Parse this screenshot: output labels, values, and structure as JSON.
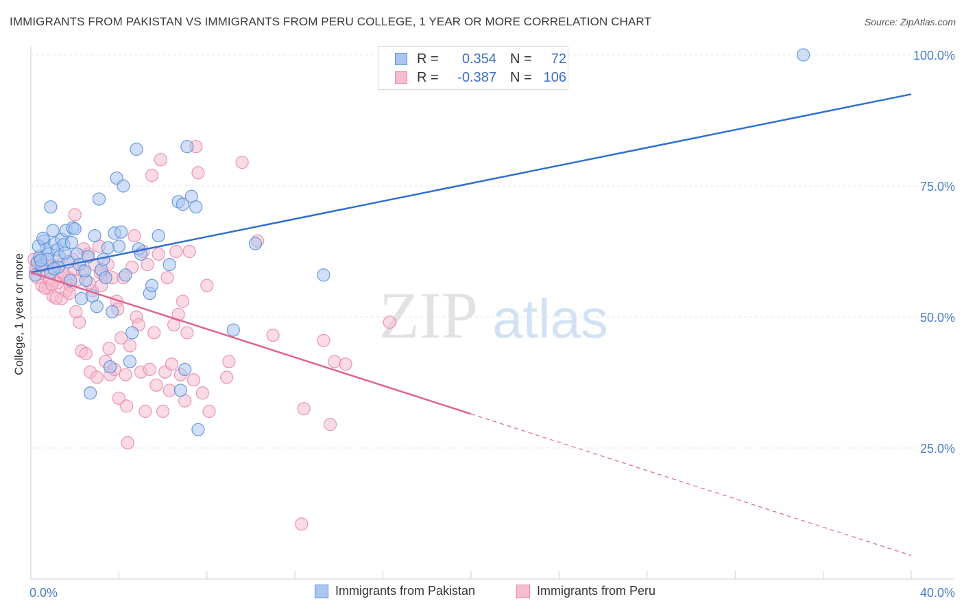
{
  "header": {
    "title": "IMMIGRANTS FROM PAKISTAN VS IMMIGRANTS FROM PERU COLLEGE, 1 YEAR OR MORE CORRELATION CHART",
    "source": "Source: ZipAtlas.com"
  },
  "watermark": {
    "zip": "ZIP",
    "atlas": "atlas"
  },
  "legend": {
    "r_label": "R =",
    "n_label": "N =",
    "pakistan": {
      "r": "0.354",
      "n": "72"
    },
    "peru": {
      "r": "-0.387",
      "n": "106"
    }
  },
  "bottom_legend": {
    "pakistan": "Immigrants from Pakistan",
    "peru": "Immigrants from Peru"
  },
  "colors": {
    "pakistan_fill": "#a9c5f0",
    "pakistan_stroke": "#5a8fd8",
    "pakistan_line": "#2f6fd0",
    "peru_fill": "#f6bcd0",
    "peru_stroke": "#e889ab",
    "peru_line": "#e0628f",
    "axis_text": "#4a7ecb"
  },
  "chart_data": {
    "type": "scatter",
    "title": "IMMIGRANTS FROM PAKISTAN VS IMMIGRANTS FROM PERU COLLEGE, 1 YEAR OR MORE CORRELATION CHART",
    "xlabel": "",
    "ylabel": "College, 1 year or more",
    "xlim": [
      0,
      40
    ],
    "ylim": [
      0,
      103
    ],
    "x_tick_labels": [
      "0.0%",
      "40.0%"
    ],
    "y_ticks": [
      25,
      50,
      75,
      100
    ],
    "y_tick_labels": [
      "25.0%",
      "50.0%",
      "75.0%",
      "100.0%"
    ],
    "grid": true,
    "series": [
      {
        "name": "Immigrants from Pakistan",
        "points": [
          [
            0.3,
            60.5
          ],
          [
            0.4,
            61.5
          ],
          [
            0.5,
            59.8
          ],
          [
            0.6,
            64.5
          ],
          [
            0.7,
            63
          ],
          [
            0.8,
            62
          ],
          [
            0.9,
            71
          ],
          [
            0.9,
            58.5
          ],
          [
            1.0,
            66.5
          ],
          [
            1.1,
            64
          ],
          [
            1.2,
            62.8
          ],
          [
            1.3,
            61.5
          ],
          [
            1.4,
            64.8
          ],
          [
            1.5,
            63.8
          ],
          [
            1.6,
            66.5
          ],
          [
            1.7,
            60.5
          ],
          [
            1.8,
            57
          ],
          [
            1.9,
            67
          ],
          [
            2.0,
            66.8
          ],
          [
            2.1,
            62
          ],
          [
            2.2,
            60
          ],
          [
            2.3,
            53.5
          ],
          [
            2.5,
            57
          ],
          [
            2.6,
            61.5
          ],
          [
            2.7,
            35.5
          ],
          [
            2.8,
            54
          ],
          [
            3.0,
            52
          ],
          [
            3.1,
            72.5
          ],
          [
            3.2,
            59
          ],
          [
            3.3,
            61
          ],
          [
            3.4,
            57.5
          ],
          [
            3.6,
            40.5
          ],
          [
            3.7,
            51
          ],
          [
            3.8,
            66
          ],
          [
            3.9,
            76.5
          ],
          [
            4.0,
            63.5
          ],
          [
            4.2,
            75
          ],
          [
            4.3,
            58
          ],
          [
            4.5,
            41.5
          ],
          [
            4.6,
            47
          ],
          [
            4.8,
            82
          ],
          [
            4.9,
            63
          ],
          [
            5.0,
            62
          ],
          [
            5.4,
            54.5
          ],
          [
            5.5,
            56
          ],
          [
            5.8,
            65.5
          ],
          [
            6.3,
            60
          ],
          [
            6.7,
            72
          ],
          [
            6.8,
            36
          ],
          [
            6.9,
            71.5
          ],
          [
            7.0,
            40
          ],
          [
            7.1,
            82.5
          ],
          [
            7.3,
            73
          ],
          [
            7.5,
            71
          ],
          [
            7.6,
            28.5
          ],
          [
            9.2,
            47.5
          ],
          [
            10.2,
            64
          ],
          [
            13.3,
            58
          ],
          [
            35.1,
            100
          ],
          [
            0.2,
            58
          ],
          [
            0.35,
            63.5
          ],
          [
            0.55,
            65
          ],
          [
            0.75,
            61
          ],
          [
            1.25,
            59.5
          ],
          [
            1.55,
            62.2
          ],
          [
            1.85,
            64.2
          ],
          [
            2.45,
            58.8
          ],
          [
            2.9,
            65.5
          ],
          [
            3.5,
            63.2
          ],
          [
            4.1,
            66.2
          ],
          [
            0.45,
            60.8
          ],
          [
            1.05,
            59.2
          ]
        ]
      },
      {
        "name": "Immigrants from Peru",
        "points": [
          [
            0.2,
            59
          ],
          [
            0.3,
            57.5
          ],
          [
            0.4,
            61
          ],
          [
            0.5,
            56
          ],
          [
            0.6,
            58.5
          ],
          [
            0.7,
            60.5
          ],
          [
            0.8,
            55.5
          ],
          [
            0.9,
            59.5
          ],
          [
            1.0,
            54
          ],
          [
            1.1,
            57
          ],
          [
            1.2,
            56.5
          ],
          [
            1.3,
            60
          ],
          [
            1.4,
            53.5
          ],
          [
            1.5,
            58
          ],
          [
            1.6,
            55
          ],
          [
            1.7,
            57.5
          ],
          [
            1.8,
            56
          ],
          [
            1.9,
            61
          ],
          [
            2.0,
            59
          ],
          [
            2.1,
            57
          ],
          [
            2.2,
            49
          ],
          [
            2.3,
            43.5
          ],
          [
            2.4,
            63
          ],
          [
            2.5,
            43
          ],
          [
            2.6,
            62
          ],
          [
            2.7,
            39.5
          ],
          [
            2.8,
            55
          ],
          [
            2.9,
            60
          ],
          [
            3.0,
            38.5
          ],
          [
            3.1,
            63.5
          ],
          [
            3.2,
            56
          ],
          [
            3.3,
            58
          ],
          [
            3.4,
            41.5
          ],
          [
            3.5,
            60
          ],
          [
            3.6,
            39
          ],
          [
            3.7,
            57.5
          ],
          [
            3.8,
            40
          ],
          [
            3.9,
            53
          ],
          [
            4.0,
            34.5
          ],
          [
            4.1,
            46
          ],
          [
            4.2,
            57.5
          ],
          [
            4.3,
            39
          ],
          [
            4.4,
            26
          ],
          [
            4.5,
            44.5
          ],
          [
            4.6,
            59.5
          ],
          [
            4.7,
            65.5
          ],
          [
            4.8,
            50
          ],
          [
            4.9,
            48.5
          ],
          [
            5.0,
            39.5
          ],
          [
            5.1,
            62.5
          ],
          [
            5.2,
            32
          ],
          [
            5.3,
            60
          ],
          [
            5.4,
            40
          ],
          [
            5.5,
            77
          ],
          [
            5.6,
            47
          ],
          [
            5.7,
            37
          ],
          [
            5.8,
            62
          ],
          [
            5.9,
            80
          ],
          [
            6.0,
            32
          ],
          [
            6.1,
            39.5
          ],
          [
            6.2,
            57.5
          ],
          [
            6.3,
            36
          ],
          [
            6.4,
            41
          ],
          [
            6.5,
            48.5
          ],
          [
            6.6,
            62.5
          ],
          [
            6.7,
            50.5
          ],
          [
            6.8,
            39
          ],
          [
            6.9,
            53
          ],
          [
            7.0,
            34
          ],
          [
            7.1,
            47
          ],
          [
            7.2,
            62.5
          ],
          [
            7.4,
            38
          ],
          [
            7.5,
            82.5
          ],
          [
            7.6,
            77.5
          ],
          [
            7.8,
            35.5
          ],
          [
            8.0,
            56
          ],
          [
            8.1,
            32
          ],
          [
            8.9,
            38.5
          ],
          [
            9.0,
            41.5
          ],
          [
            9.6,
            79.5
          ],
          [
            10.3,
            64.5
          ],
          [
            11.0,
            46.5
          ],
          [
            12.4,
            32.5
          ],
          [
            13.3,
            45.5
          ],
          [
            13.6,
            29.5
          ],
          [
            13.8,
            41.5
          ],
          [
            14.3,
            41
          ],
          [
            16.3,
            49
          ],
          [
            12.3,
            10.5
          ],
          [
            2.0,
            69.5
          ],
          [
            0.25,
            60.2
          ],
          [
            0.65,
            55.5
          ],
          [
            0.85,
            57.2
          ],
          [
            1.15,
            53.6
          ],
          [
            1.45,
            58.5
          ],
          [
            1.75,
            54.5
          ],
          [
            2.05,
            51
          ],
          [
            2.35,
            58.8
          ],
          [
            2.65,
            56.5
          ],
          [
            3.15,
            58.5
          ],
          [
            3.55,
            44
          ],
          [
            3.95,
            51.5
          ],
          [
            4.35,
            33
          ],
          [
            0.15,
            61
          ],
          [
            0.55,
            59
          ],
          [
            0.95,
            56.2
          ]
        ]
      }
    ],
    "trendlines": [
      {
        "series": "Immigrants from Pakistan",
        "x": [
          0,
          40
        ],
        "y": [
          58.5,
          92.5
        ]
      },
      {
        "series": "Immigrants from Peru",
        "x": [
          0,
          40
        ],
        "y": [
          58.5,
          4.5
        ],
        "solid_until_x": 20
      }
    ]
  }
}
